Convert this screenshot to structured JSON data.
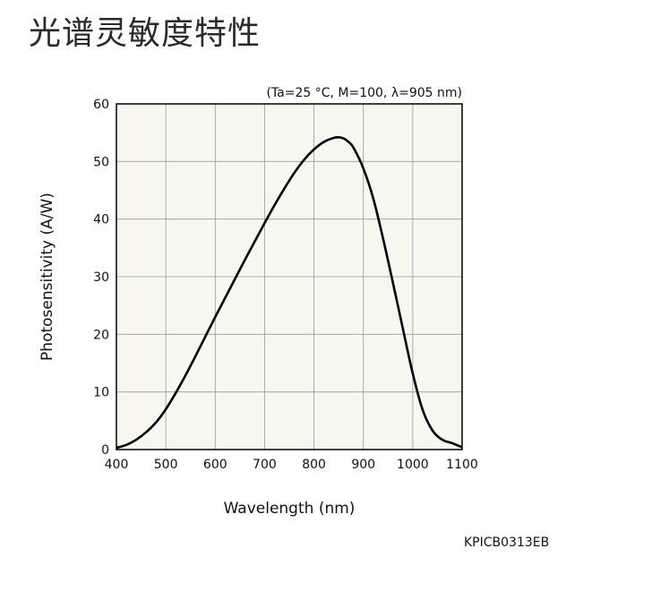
{
  "page": {
    "title": "光谱灵敏度特性",
    "code": "KPICB0313EB"
  },
  "colors": {
    "plot_background": "#f7f6ef",
    "grid": "#9a9a9a",
    "curve": "#000000",
    "frame": "#000000"
  },
  "chart_data": {
    "type": "line",
    "title": "",
    "condition": "(Ta=25 °C, M=100, λ=905 nm)",
    "xlabel": "Wavelength (nm)",
    "ylabel": "Photosensitivity (A/W)",
    "xlim": [
      400,
      1100
    ],
    "ylim": [
      0,
      60
    ],
    "xticks": [
      400,
      500,
      600,
      700,
      800,
      900,
      1000,
      1100
    ],
    "yticks": [
      0,
      10,
      20,
      30,
      40,
      50,
      60
    ],
    "grid": true,
    "series": [
      {
        "x": [
          400,
          420,
          440,
          460,
          480,
          500,
          520,
          540,
          560,
          580,
          600,
          620,
          640,
          660,
          680,
          700,
          720,
          740,
          760,
          780,
          800,
          820,
          840,
          850,
          860,
          870,
          880,
          900,
          920,
          940,
          960,
          980,
          1000,
          1020,
          1040,
          1060,
          1080,
          1100
        ],
        "y": [
          0.3,
          0.8,
          1.7,
          3.0,
          4.7,
          7.0,
          9.8,
          12.9,
          16.2,
          19.6,
          23.0,
          26.3,
          29.6,
          32.9,
          36.1,
          39.3,
          42.4,
          45.3,
          48.0,
          50.3,
          52.1,
          53.4,
          54.1,
          54.2,
          54.0,
          53.4,
          52.4,
          48.8,
          43.6,
          36.6,
          28.9,
          21.0,
          13.2,
          6.9,
          3.3,
          1.7,
          1.1,
          0.4
        ]
      }
    ]
  }
}
